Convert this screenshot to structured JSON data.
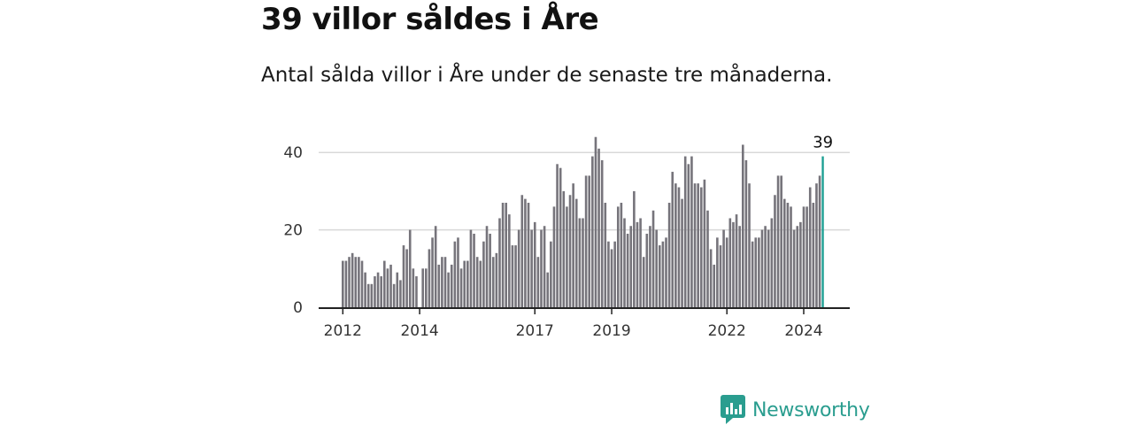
{
  "title": "39 villor såldes i Åre",
  "subtitle": "Antal sålda villor i Åre under de senaste tre månaderna.",
  "brand": {
    "name": "Newsworthy",
    "color": "#2a9d8f",
    "icon": "newsworthy-logo-icon"
  },
  "colors": {
    "bar": "#76747b",
    "highlight": "#1a9e92",
    "grid": "#d9d9d9",
    "axis": "#222222"
  },
  "chart_data": {
    "type": "bar",
    "ylim": [
      0,
      44
    ],
    "yticks": [
      0,
      20,
      40
    ],
    "xtick_labels": [
      "2012",
      "2014",
      "2017",
      "2019",
      "2022",
      "2024"
    ],
    "highlight_label": "39",
    "grid": true,
    "values": [
      12,
      12,
      13,
      14,
      13,
      13,
      12,
      9,
      6,
      6,
      8,
      9,
      8,
      12,
      10,
      11,
      6,
      9,
      7,
      16,
      15,
      20,
      10,
      8,
      0,
      10,
      10,
      15,
      18,
      21,
      11,
      13,
      13,
      9,
      11,
      17,
      18,
      10,
      12,
      12,
      20,
      19,
      13,
      12,
      17,
      21,
      19,
      13,
      14,
      23,
      27,
      27,
      24,
      16,
      16,
      20,
      29,
      28,
      27,
      20,
      22,
      13,
      20,
      21,
      9,
      17,
      26,
      37,
      36,
      30,
      26,
      29,
      32,
      28,
      23,
      23,
      34,
      34,
      39,
      44,
      41,
      38,
      27,
      17,
      15,
      17,
      26,
      27,
      23,
      19,
      21,
      30,
      22,
      23,
      13,
      19,
      21,
      25,
      20,
      16,
      17,
      18,
      27,
      35,
      32,
      31,
      28,
      39,
      37,
      39,
      32,
      32,
      31,
      33,
      25,
      15,
      11,
      18,
      16,
      20,
      18,
      23,
      22,
      24,
      21,
      42,
      38,
      32,
      17,
      18,
      18,
      20,
      21,
      20,
      23,
      29,
      34,
      34,
      28,
      27,
      26,
      20,
      21,
      22,
      26,
      26,
      31,
      27,
      32,
      34,
      39
    ]
  }
}
